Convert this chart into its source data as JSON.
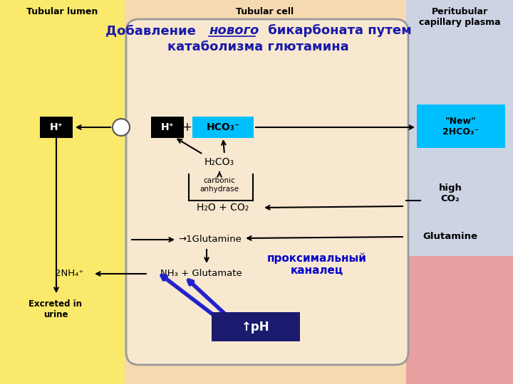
{
  "title_line1": "Добавление ",
  "title_italic": "нового",
  "title_line1_rest": " бикарбоната путем",
  "title_line2": "катаболизма глютамина",
  "header_left": "Tubular lumen",
  "header_mid": "Tubular cell",
  "header_right": "Peritubular\ncapillary plasma",
  "bg_left": "#FAE96B",
  "bg_mid": "#F5D9B0",
  "bg_right": "#E8A0A0",
  "hco3_box_color": "#00BFFF",
  "new_hco3_box_color": "#00BFFF",
  "ph_box_color": "#1a1a6e",
  "proximal_text": "проксимальный\nканалец",
  "ph_label": "↑рН",
  "new_label": "\"New\"\n2HCO₃⁻",
  "high_co2": "high\nCO₂",
  "glutamine_right": "Glutamine",
  "h2co3": "H₂CO₃",
  "carbonic": "carbonic\nanhydrase",
  "h2o_co2": "H₂O + CO₂",
  "glutamine_cell": "→·1Glutamine",
  "nh3_glut": "NH₃ + Glutamate",
  "nh4_left": "2NH₄⁺",
  "excreted": "Excreted in\nurine",
  "h_left": "H⁺",
  "h_cell": "H⁺"
}
